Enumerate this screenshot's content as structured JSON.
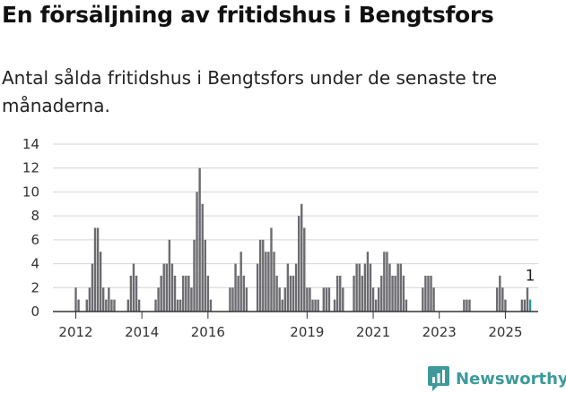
{
  "title": "En försäljning av fritidshus i Bengtsfors",
  "subtitle": "Antal sålda fritidshus i Bengtsfors under de senaste tre månaderna.",
  "brand": {
    "name": "Newsworthy"
  },
  "colors": {
    "bar": "#6b6b70",
    "highlight": "#2a9a98",
    "grid": "#d4d4d4"
  },
  "chart_data": {
    "type": "bar",
    "title": "En försäljning av fritidshus i Bengtsfors",
    "xlabel": "",
    "ylabel": "",
    "ylim": [
      0,
      14
    ],
    "yticks": [
      0,
      2,
      4,
      6,
      8,
      10,
      12,
      14
    ],
    "x_start": "2012-01",
    "x_tick_labels": [
      {
        "label": "2012",
        "month": "2012-01"
      },
      {
        "label": "2014",
        "month": "2014-01"
      },
      {
        "label": "2016",
        "month": "2016-01"
      },
      {
        "label": "2019",
        "month": "2019-01"
      },
      {
        "label": "2021",
        "month": "2021-01"
      },
      {
        "label": "2023",
        "month": "2023-01"
      },
      {
        "label": "2025",
        "month": "2025-01"
      }
    ],
    "grid": true,
    "series": [
      {
        "values": [
          2,
          1,
          0,
          0,
          1,
          2,
          4,
          7,
          7,
          5,
          2,
          1,
          2,
          1,
          1,
          0,
          0,
          0,
          0,
          1,
          3,
          4,
          3,
          1,
          0,
          0,
          0,
          0,
          0,
          1,
          2,
          3,
          4,
          4,
          6,
          4,
          3,
          1,
          1,
          3,
          3,
          3,
          2,
          6,
          10,
          12,
          9,
          6,
          3,
          1,
          0,
          0,
          0,
          0,
          0,
          0,
          2,
          2,
          4,
          3,
          5,
          3,
          2,
          0,
          0,
          0,
          4,
          6,
          6,
          5,
          5,
          7,
          5,
          3,
          2,
          1,
          2,
          4,
          3,
          3,
          4,
          8,
          9,
          7,
          2,
          2,
          1,
          1,
          1,
          0,
          2,
          2,
          2,
          0,
          1,
          3,
          3,
          2,
          0,
          0,
          0,
          3,
          4,
          4,
          3,
          4,
          5,
          4,
          2,
          1,
          2,
          3,
          5,
          5,
          4,
          3,
          3,
          4,
          4,
          3,
          1,
          0,
          0,
          0,
          0,
          0,
          2,
          3,
          3,
          3,
          2,
          0,
          0,
          0,
          0,
          0,
          0,
          0,
          0,
          0,
          0,
          1,
          1,
          1,
          0,
          0,
          0,
          0,
          0,
          0,
          0,
          0,
          0,
          2,
          3,
          2,
          1,
          0,
          0,
          0,
          0,
          0,
          1,
          1,
          2,
          1
        ]
      }
    ],
    "last_value_label": "1"
  }
}
